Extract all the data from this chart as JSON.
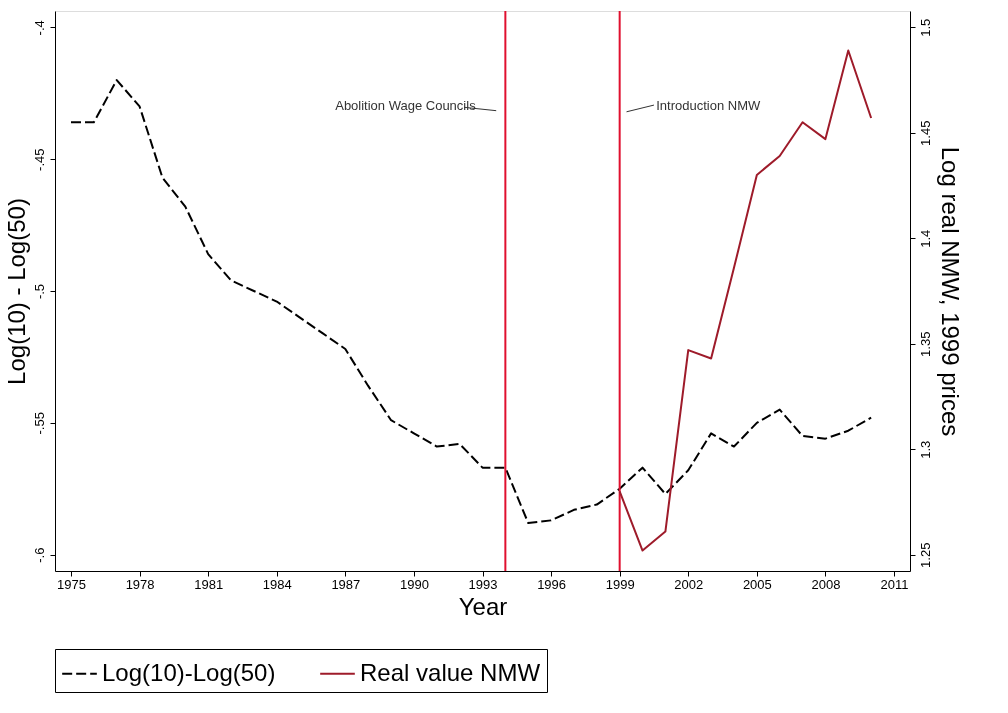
{
  "chart_data": {
    "type": "line",
    "xlabel": "Year",
    "ylabel": "Log(10) - Log(50)",
    "y2label": "Log real NMW, 1999 prices",
    "x": [
      1975,
      1976,
      1977,
      1978,
      1979,
      1980,
      1981,
      1982,
      1983,
      1984,
      1985,
      1986,
      1987,
      1988,
      1989,
      1990,
      1991,
      1992,
      1993,
      1994,
      1995,
      1996,
      1997,
      1998,
      1999,
      2000,
      2001,
      2002,
      2003,
      2004,
      2005,
      2006,
      2007,
      2008,
      2009,
      2010
    ],
    "series": [
      {
        "name": "Log(10)-Log(50)",
        "color": "#000000",
        "line_style": "dashed",
        "values": [
          -0.436,
          -0.436,
          -0.42,
          -0.43,
          -0.457,
          -0.468,
          -0.486,
          -0.496,
          -0.5,
          -0.504,
          -0.51,
          -0.516,
          -0.522,
          -0.536,
          -0.549,
          -0.554,
          -0.559,
          -0.558,
          -0.567,
          -0.567,
          -0.588,
          -0.587,
          -0.583,
          -0.581,
          -0.575,
          -0.567,
          -0.577,
          -0.568,
          -0.554,
          -0.559,
          -0.55,
          -0.545,
          -0.555,
          -0.556,
          -0.553,
          -0.548
        ]
      },
      {
        "name": "Real value NMW",
        "color": "#9e1b2a",
        "line_style": "solid",
        "axis": "y2",
        "x": [
          1999,
          2000,
          2001,
          2002,
          2003,
          2004,
          2005,
          2006,
          2007,
          2008,
          2009,
          2010
        ],
        "values": [
          1.28,
          1.252,
          1.261,
          1.347,
          1.343,
          1.386,
          1.43,
          1.439,
          1.455,
          1.447,
          1.489,
          1.457
        ]
      }
    ],
    "xlim": [
      1974.3,
      2011.7
    ],
    "xticks": [
      1975,
      1978,
      1981,
      1984,
      1987,
      1990,
      1993,
      1996,
      1999,
      2002,
      2005,
      2008,
      2011
    ],
    "ylim": [
      -0.6062,
      -0.3938
    ],
    "yticks": [
      {
        "value": -0.6,
        "label": "-.6"
      },
      {
        "value": -0.55,
        "label": "-.55"
      },
      {
        "value": -0.5,
        "label": "-.5"
      },
      {
        "value": -0.45,
        "label": "-.45"
      },
      {
        "value": -0.4,
        "label": "-.4"
      }
    ],
    "y2lim": [
      1.2423,
      1.5077
    ],
    "y2ticks": [
      1.25,
      {
        "value": 1.3,
        "label": "1.3"
      },
      1.35,
      {
        "value": 1.4,
        "label": "1.4"
      },
      1.45,
      {
        "value": 1.5,
        "label": "1.5"
      }
    ],
    "ref_lines": [
      {
        "axis": "x",
        "value": 1994,
        "label": "Abolition Wage Councils",
        "color": "#e0102f"
      },
      {
        "axis": "x",
        "value": 1999,
        "label": "Introduction NMW",
        "color": "#e0102f"
      }
    ],
    "grid": false,
    "legend": "bottom",
    "marker": "none"
  }
}
